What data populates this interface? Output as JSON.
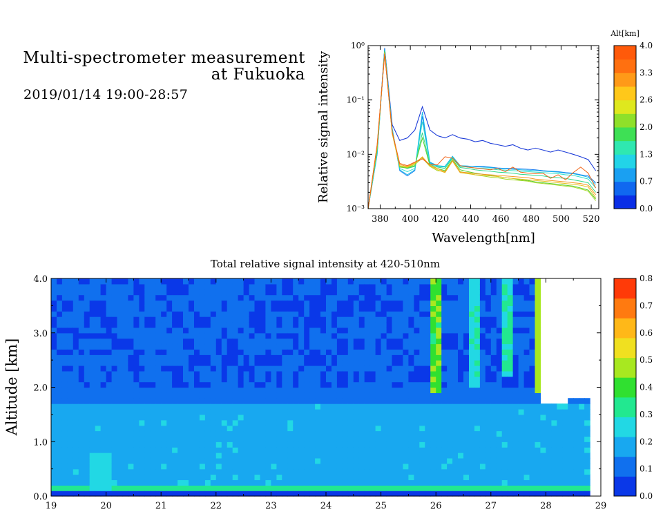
{
  "header": {
    "title_line1": "Multi-spectrometer measurement",
    "title_line2": "at Fukuoka",
    "datetime": "2019/01/14 19:00-28:57"
  },
  "chart_data": [
    {
      "type": "line",
      "xlabel": "Wavelength[nm]",
      "ylabel": "Relative signal intensity",
      "xlim": [
        372,
        525
      ],
      "ylim": [
        0.001,
        1
      ],
      "yscale": "log",
      "x_ticks": [
        380,
        400,
        420,
        440,
        460,
        480,
        500,
        520
      ],
      "y_ticks": [
        {
          "value": 0.001,
          "label": "10⁻³"
        },
        {
          "value": 0.01,
          "label": "10⁻²"
        },
        {
          "value": 0.1,
          "label": "10⁻¹"
        },
        {
          "value": 1,
          "label": "10⁰"
        }
      ],
      "colorbar": {
        "title": "Alt[km]",
        "labels": [
          "0.0",
          "0.7",
          "1.3",
          "2.0",
          "2.6",
          "3.3",
          "4.0"
        ],
        "colors": [
          "#0a2ee6",
          "#1068f0",
          "#1aa0f2",
          "#22d4e8",
          "#2fe8b0",
          "#3ee055",
          "#8fe02a",
          "#dfe81e",
          "#ffc81a",
          "#ff9a18",
          "#ff7010",
          "#ff5a0a"
        ]
      },
      "x": [
        372,
        378,
        383,
        388,
        393,
        398,
        403,
        408,
        413,
        418,
        423,
        428,
        433,
        438,
        443,
        448,
        453,
        458,
        463,
        468,
        473,
        478,
        483,
        488,
        493,
        498,
        503,
        508,
        513,
        518,
        523
      ],
      "series": [
        {
          "color": "#1a3ad8",
          "values": [
            0.001,
            0.012,
            0.9,
            0.035,
            0.018,
            0.02,
            0.028,
            0.075,
            0.028,
            0.022,
            0.02,
            0.023,
            0.02,
            0.019,
            0.017,
            0.018,
            0.016,
            0.015,
            0.014,
            0.015,
            0.013,
            0.012,
            0.013,
            0.012,
            0.011,
            0.012,
            0.011,
            0.01,
            0.009,
            0.008,
            0.005
          ]
        },
        {
          "color": "#1a7ef0",
          "values": [
            0.001,
            0.01,
            0.9,
            0.03,
            0.005,
            0.004,
            0.005,
            0.05,
            0.007,
            0.006,
            0.006,
            0.009,
            0.006,
            0.006,
            0.006,
            0.006,
            0.0058,
            0.0056,
            0.0055,
            0.0055,
            0.0054,
            0.0053,
            0.0052,
            0.005,
            0.0049,
            0.0048,
            0.0046,
            0.0045,
            0.0042,
            0.004,
            0.003
          ]
        },
        {
          "color": "#12b8ea",
          "values": [
            0.001,
            0.01,
            0.85,
            0.03,
            0.0052,
            0.0042,
            0.0052,
            0.06,
            0.0072,
            0.0062,
            0.006,
            0.0092,
            0.0062,
            0.0061,
            0.0059,
            0.0058,
            0.0057,
            0.0055,
            0.0054,
            0.0053,
            0.0052,
            0.0051,
            0.005,
            0.0049,
            0.0048,
            0.0047,
            0.0045,
            0.0044,
            0.0041,
            0.0038,
            0.0028
          ]
        },
        {
          "color": "#2ee0c8",
          "values": [
            0.001,
            0.011,
            0.82,
            0.028,
            0.0055,
            0.0048,
            0.0055,
            0.04,
            0.0068,
            0.006,
            0.0058,
            0.0088,
            0.006,
            0.0058,
            0.0056,
            0.0055,
            0.0054,
            0.0052,
            0.0051,
            0.005,
            0.0049,
            0.0048,
            0.0047,
            0.0046,
            0.0045,
            0.0044,
            0.0042,
            0.0041,
            0.0038,
            0.0035,
            0.0024
          ]
        },
        {
          "color": "#2fd888",
          "values": [
            0.001,
            0.012,
            0.8,
            0.026,
            0.006,
            0.0055,
            0.006,
            0.025,
            0.0065,
            0.0058,
            0.0055,
            0.0085,
            0.0057,
            0.0055,
            0.0052,
            0.005,
            0.0049,
            0.0047,
            0.0046,
            0.0045,
            0.0043,
            0.0042,
            0.0041,
            0.004,
            0.0038,
            0.0037,
            0.0036,
            0.0034,
            0.0032,
            0.003,
            0.002
          ]
        },
        {
          "color": "#58d030",
          "values": [
            0.001,
            0.013,
            0.78,
            0.025,
            0.0058,
            0.0056,
            0.0062,
            0.02,
            0.0062,
            0.0055,
            0.005,
            0.008,
            0.0052,
            0.0048,
            0.0045,
            0.0043,
            0.0041,
            0.0039,
            0.0037,
            0.0036,
            0.0034,
            0.0033,
            0.0031,
            0.003,
            0.0029,
            0.0028,
            0.0027,
            0.0026,
            0.0024,
            0.0022,
            0.0015
          ]
        },
        {
          "color": "#a8d828",
          "values": [
            0.001,
            0.013,
            0.75,
            0.024,
            0.006,
            0.0057,
            0.0065,
            0.0085,
            0.006,
            0.005,
            0.0048,
            0.0078,
            0.0048,
            0.0045,
            0.0042,
            0.004,
            0.0038,
            0.0037,
            0.0035,
            0.0034,
            0.0033,
            0.0032,
            0.003,
            0.0029,
            0.0028,
            0.0027,
            0.0026,
            0.0025,
            0.0023,
            0.0021,
            0.0014
          ]
        },
        {
          "color": "#e6c21e",
          "values": [
            0.001,
            0.014,
            0.72,
            0.024,
            0.0062,
            0.0058,
            0.0068,
            0.009,
            0.0062,
            0.0052,
            0.0046,
            0.0075,
            0.0046,
            0.0044,
            0.0042,
            0.0041,
            0.004,
            0.0039,
            0.0037,
            0.0036,
            0.0035,
            0.0034,
            0.0033,
            0.0032,
            0.0031,
            0.003,
            0.0029,
            0.0028,
            0.0027,
            0.0025,
            0.0016
          ]
        },
        {
          "color": "#f59a22",
          "values": [
            0.001,
            0.015,
            0.7,
            0.025,
            0.0065,
            0.006,
            0.007,
            0.0088,
            0.0063,
            0.0055,
            0.0047,
            0.0076,
            0.0047,
            0.0046,
            0.0044,
            0.0043,
            0.0042,
            0.0041,
            0.004,
            0.0039,
            0.0038,
            0.0037,
            0.0035,
            0.0034,
            0.0033,
            0.0032,
            0.0031,
            0.003,
            0.0029,
            0.0027,
            0.0018
          ]
        },
        {
          "color": "#f06418",
          "values": [
            0.001,
            0.015,
            0.7,
            0.026,
            0.0068,
            0.0062,
            0.0072,
            0.0082,
            0.0065,
            0.0064,
            0.009,
            0.0085,
            0.0062,
            0.0058,
            0.0056,
            0.0054,
            0.0052,
            0.0055,
            0.0048,
            0.0058,
            0.0047,
            0.0045,
            0.0044,
            0.0045,
            0.0036,
            0.0042,
            0.0034,
            0.0046,
            0.0058,
            0.0045,
            0.0024
          ]
        }
      ]
    },
    {
      "type": "heatmap",
      "title": "Total relative signal intensity at 420-510nm",
      "ylabel": "Altitude [km]",
      "xlim": [
        19,
        29
      ],
      "ylim": [
        0,
        4
      ],
      "x_ticks": [
        "19",
        "20",
        "21",
        "22",
        "23",
        "24",
        "25",
        "26",
        "27",
        "28",
        "29"
      ],
      "y_ticks": [
        "0.0",
        "1.0",
        "2.0",
        "3.0",
        "4.0"
      ],
      "data_x_range": [
        19,
        28.8
      ],
      "colorbar": {
        "labels": [
          "0.0",
          "0.1",
          "0.2",
          "0.3",
          "0.4",
          "0.5",
          "0.6",
          "0.7",
          "0.8"
        ],
        "colors": [
          "#0a38e8",
          "#1070ee",
          "#18a8f0",
          "#22d8e4",
          "#22e890",
          "#30e030",
          "#a8e820",
          "#f0e020",
          "#ffb818",
          "#ff7a10",
          "#ff3a08"
        ]
      }
    }
  ]
}
